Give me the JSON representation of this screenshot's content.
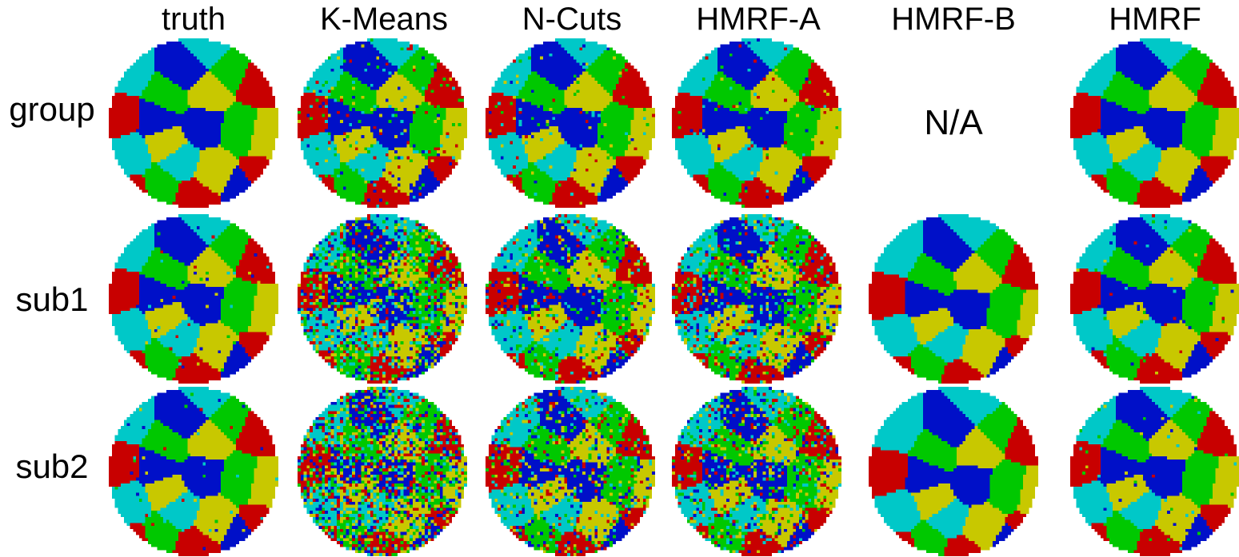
{
  "columns": [
    "truth",
    "K-Means",
    "N-Cuts",
    "HMRF-A",
    "HMRF-B",
    "HMRF"
  ],
  "rows": [
    "group",
    "sub1",
    "sub2"
  ],
  "missing_label": "N/A",
  "missing_cell": {
    "row": 0,
    "col": 4
  },
  "colors": {
    "blue": "#0010c8",
    "cyan": "#00c8c8",
    "green": "#00c800",
    "yellow": "#c8c800",
    "red": "#c80000"
  }
}
